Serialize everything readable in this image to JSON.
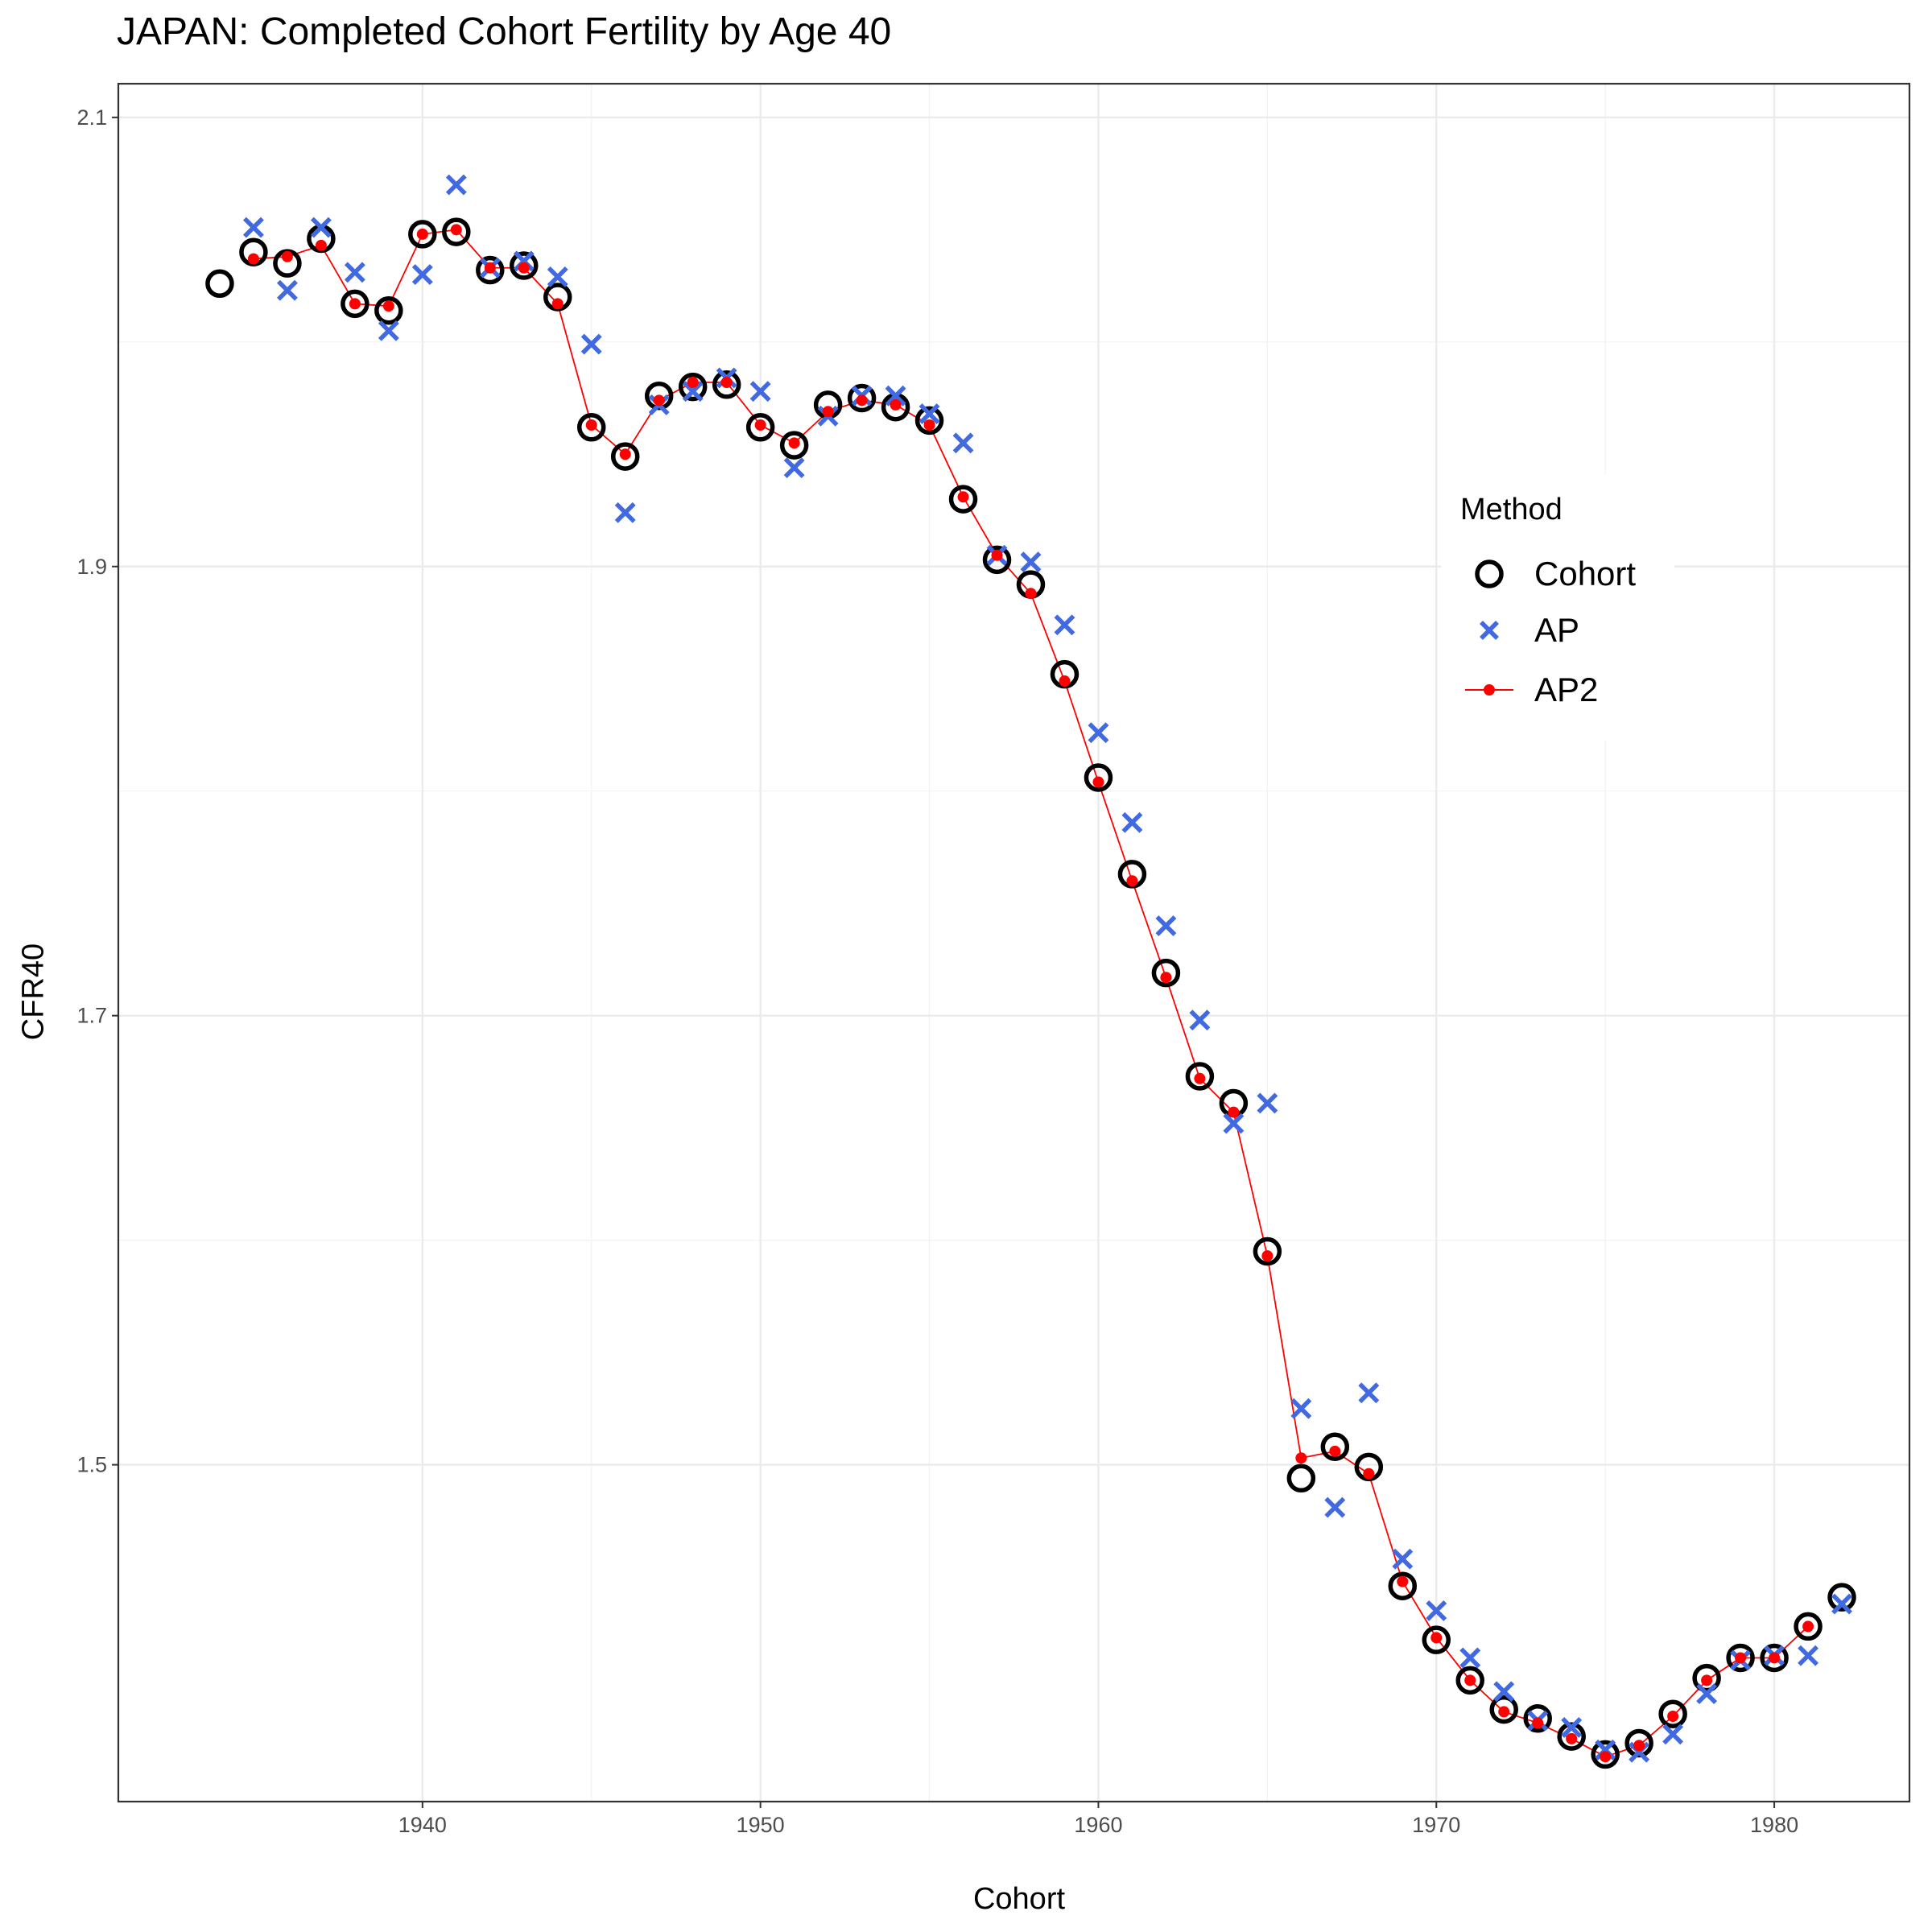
{
  "chart_data": {
    "type": "scatter",
    "title": "JAPAN: Completed Cohort Fertility by Age 40",
    "xlabel": "Cohort",
    "ylabel": "CFR40",
    "xlim": [
      1931,
      1984
    ],
    "ylim": [
      1.35,
      2.115
    ],
    "x_ticks": [
      1940,
      1950,
      1960,
      1970,
      1980
    ],
    "y_ticks": [
      1.5,
      1.7,
      1.9,
      2.1
    ],
    "y_tick_labels": [
      "1.5",
      "1.7",
      "1.9",
      "2.1"
    ],
    "grid": true,
    "legend": {
      "title": "Method",
      "position": "right"
    },
    "colors": {
      "cohort": "#000000",
      "ap": "#4169E1",
      "ap2": "#FF0000"
    },
    "series": [
      {
        "name": "Cohort",
        "marker": "open-circle",
        "x": [
          1934,
          1935,
          1936,
          1937,
          1938,
          1939,
          1940,
          1941,
          1942,
          1943,
          1944,
          1945,
          1946,
          1947,
          1948,
          1949,
          1950,
          1951,
          1952,
          1953,
          1954,
          1955,
          1956,
          1957,
          1958,
          1959,
          1960,
          1961,
          1962,
          1963,
          1964,
          1965,
          1966,
          1967,
          1968,
          1969,
          1970,
          1971,
          1972,
          1973,
          1974,
          1975,
          1976,
          1977,
          1978,
          1979,
          1980,
          1981,
          1982
        ],
        "y": [
          2.026,
          2.04,
          2.035,
          2.046,
          2.017,
          2.014,
          2.048,
          2.049,
          2.032,
          2.034,
          2.02,
          1.962,
          1.949,
          1.976,
          1.98,
          1.981,
          1.962,
          1.954,
          1.972,
          1.975,
          1.971,
          1.965,
          1.93,
          1.903,
          1.892,
          1.852,
          1.806,
          1.763,
          1.719,
          1.673,
          1.661,
          1.595,
          1.494,
          1.508,
          1.499,
          1.446,
          1.422,
          1.404,
          1.391,
          1.387,
          1.379,
          1.371,
          1.376,
          1.389,
          1.405,
          1.414,
          1.414,
          1.428,
          1.441
        ]
      },
      {
        "name": "AP",
        "marker": "cross",
        "x": [
          1935,
          1936,
          1937,
          1938,
          1939,
          1940,
          1941,
          1942,
          1943,
          1944,
          1945,
          1946,
          1947,
          1948,
          1949,
          1950,
          1951,
          1952,
          1953,
          1954,
          1955,
          1956,
          1957,
          1958,
          1959,
          1960,
          1961,
          1962,
          1963,
          1964,
          1965,
          1966,
          1967,
          1968,
          1969,
          1970,
          1971,
          1972,
          1973,
          1974,
          1975,
          1976,
          1977,
          1978,
          1979,
          1980,
          1981,
          1982
        ],
        "y": [
          2.051,
          2.023,
          2.051,
          2.031,
          2.005,
          2.03,
          2.07,
          2.033,
          2.036,
          2.029,
          1.999,
          1.924,
          1.972,
          1.978,
          1.984,
          1.978,
          1.944,
          1.967,
          1.976,
          1.976,
          1.968,
          1.955,
          1.905,
          1.902,
          1.874,
          1.826,
          1.786,
          1.74,
          1.698,
          1.652,
          1.661,
          1.525,
          1.481,
          1.532,
          1.458,
          1.435,
          1.414,
          1.399,
          1.386,
          1.383,
          1.373,
          1.372,
          1.38,
          1.398,
          1.413,
          1.415,
          1.415,
          1.438
        ]
      },
      {
        "name": "AP2",
        "marker": "dot-line",
        "x": [
          1935,
          1936,
          1937,
          1938,
          1939,
          1940,
          1941,
          1942,
          1943,
          1944,
          1945,
          1946,
          1947,
          1948,
          1949,
          1950,
          1951,
          1952,
          1953,
          1954,
          1955,
          1956,
          1957,
          1958,
          1959,
          1960,
          1961,
          1962,
          1963,
          1964,
          1965,
          1966,
          1967,
          1968,
          1969,
          1970,
          1971,
          1972,
          1973,
          1974,
          1975,
          1976,
          1977,
          1978,
          1979,
          1980,
          1981
        ],
        "y": [
          2.037,
          2.038,
          2.043,
          2.017,
          2.016,
          2.048,
          2.05,
          2.033,
          2.033,
          2.017,
          1.963,
          1.95,
          1.974,
          1.982,
          1.982,
          1.963,
          1.955,
          1.969,
          1.974,
          1.972,
          1.963,
          1.931,
          1.905,
          1.888,
          1.849,
          1.804,
          1.76,
          1.717,
          1.672,
          1.657,
          1.593,
          1.503,
          1.506,
          1.496,
          1.448,
          1.423,
          1.404,
          1.39,
          1.385,
          1.378,
          1.37,
          1.375,
          1.388,
          1.404,
          1.414,
          1.414,
          1.428
        ]
      }
    ]
  }
}
